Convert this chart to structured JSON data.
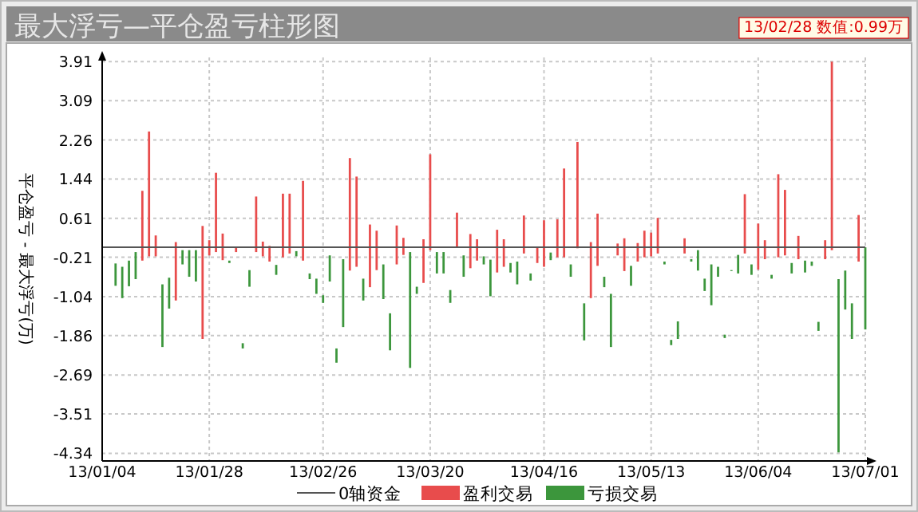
{
  "chart_data": {
    "type": "bar",
    "title": "最大浮亏—平仓盈亏柱形图",
    "ylabel": "平仓盈亏 - 最大浮亏(万)",
    "annotations": [
      "13/02/28 数值:0.99万"
    ],
    "categories": [
      "13/01/04",
      null,
      null,
      null,
      null,
      null,
      null,
      null,
      null,
      null,
      null,
      null,
      null,
      null,
      null,
      null,
      "13/01/28",
      null,
      null,
      null,
      null,
      null,
      null,
      null,
      null,
      null,
      null,
      null,
      null,
      null,
      null,
      null,
      null,
      "13/02/26",
      null,
      null,
      null,
      null,
      null,
      null,
      null,
      null,
      null,
      null,
      null,
      null,
      null,
      null,
      null,
      "13/03/20",
      null,
      null,
      null,
      null,
      null,
      null,
      null,
      null,
      null,
      null,
      null,
      null,
      null,
      null,
      null,
      null,
      "13/04/16",
      null,
      null,
      null,
      null,
      null,
      null,
      null,
      null,
      null,
      null,
      null,
      null,
      null,
      null,
      null,
      "13/05/13",
      null,
      null,
      null,
      null,
      null,
      null,
      null,
      null,
      null,
      null,
      null,
      null,
      null,
      null,
      null,
      "13/06/04",
      null,
      null,
      null,
      null,
      null,
      null,
      null,
      null,
      null,
      null,
      null,
      null,
      null,
      null,
      null,
      "13/07/01"
    ],
    "ylim": [
      -4.5,
      4.0
    ],
    "yticks": [
      -4.34,
      -3.51,
      -2.69,
      -1.86,
      -1.04,
      -0.21,
      0.61,
      1.44,
      2.26,
      3.09,
      3.91
    ],
    "grid": true,
    "legend": "bottom",
    "ref_lines": [
      {
        "axis": "y",
        "value": 0,
        "label": "0轴资金",
        "color": "#555555",
        "line_style": "solid"
      }
    ],
    "series": [
      {
        "name": "盈利交易",
        "color": "#e84c4c",
        "base": [
          null,
          null,
          null,
          null,
          null,
          null,
          -0.28,
          -0.19,
          -0.19,
          null,
          null,
          -1.12,
          null,
          null,
          null,
          -1.93,
          -0.17,
          -0.1,
          -0.27,
          null,
          -0.1,
          null,
          null,
          -0.1,
          -0.19,
          -0.3,
          null,
          -0.21,
          -0.13,
          null,
          -0.28,
          null,
          null,
          null,
          null,
          null,
          null,
          -0.49,
          -0.41,
          null,
          -0.84,
          -0.48,
          null,
          null,
          -0.36,
          -0.16,
          null,
          null,
          -0.75,
          -0.06,
          null,
          null,
          null,
          0,
          null,
          -0.44,
          -0.28,
          null,
          null,
          -0.53,
          -0.41,
          null,
          null,
          -0.13,
          null,
          -0.33,
          -0.41,
          null,
          -0.21,
          -0.21,
          null,
          -0.02,
          null,
          -1.07,
          -0.39,
          null,
          null,
          -0.17,
          -0.5,
          null,
          -0.3,
          -0.21,
          -0.19,
          -0.13,
          null,
          null,
          null,
          -0.13,
          null,
          null,
          null,
          null,
          null,
          null,
          null,
          null,
          -0.13,
          null,
          -0.47,
          -0.25,
          null,
          -0.21,
          -0.17,
          null,
          -0.25,
          null,
          null,
          null,
          -0.25,
          -0.06,
          null,
          null,
          null,
          -0.3,
          null
        ],
        "values": [
          null,
          null,
          null,
          null,
          null,
          null,
          1.47,
          2.63,
          0.44,
          null,
          null,
          1.23,
          null,
          null,
          null,
          2.38,
          0.32,
          1.67,
          0.56,
          null,
          0.1,
          null,
          null,
          1.17,
          0.31,
          0.33,
          null,
          1.34,
          1.26,
          null,
          1.68,
          null,
          null,
          null,
          null,
          null,
          null,
          2.37,
          1.9,
          null,
          1.32,
          0.83,
          null,
          null,
          0.82,
          0.36,
          null,
          null,
          0.92,
          2.02,
          null,
          null,
          null,
          0.73,
          null,
          0.72,
          0.45,
          null,
          null,
          0.9,
          0.58,
          null,
          null,
          0.8,
          null,
          0.34,
          0.98,
          null,
          0.8,
          1.87,
          null,
          2.24,
          null,
          1.18,
          1.1,
          null,
          null,
          0.25,
          0.69,
          null,
          0.39,
          0.56,
          0.5,
          0.75,
          null,
          null,
          null,
          0.32,
          null,
          null,
          null,
          null,
          null,
          null,
          null,
          null,
          1.25,
          null,
          0.97,
          0.4,
          null,
          1.75,
          1.38,
          null,
          0.49,
          null,
          null,
          null,
          0.4,
          3.97,
          null,
          null,
          null,
          0.98,
          null
        ]
      },
      {
        "name": "亏损交易",
        "color": "#3c963c",
        "base": [
          null,
          null,
          -0.81,
          -1.07,
          -0.82,
          -0.67,
          null,
          null,
          null,
          -2.1,
          -1.29,
          null,
          -0.36,
          -0.62,
          -0.72,
          null,
          null,
          null,
          null,
          -0.33,
          null,
          -2.13,
          -0.83,
          null,
          null,
          null,
          -0.58,
          null,
          null,
          -0.19,
          null,
          -0.67,
          -0.98,
          -1.17,
          -0.72,
          -2.43,
          -1.68,
          null,
          null,
          -1.12,
          null,
          null,
          -1.09,
          -2.17,
          null,
          null,
          -2.54,
          -0.98,
          null,
          null,
          -0.55,
          -0.55,
          -1.17,
          null,
          -0.62,
          null,
          null,
          -0.36,
          -1.03,
          null,
          null,
          -0.53,
          -0.78,
          null,
          -0.7,
          null,
          null,
          -0.27,
          null,
          null,
          -0.62,
          null,
          -1.96,
          null,
          null,
          -0.84,
          -2.1,
          null,
          null,
          -0.81,
          null,
          null,
          null,
          null,
          -0.36,
          -2.06,
          -1.93,
          null,
          -0.3,
          -0.49,
          -0.92,
          -1.22,
          -0.62,
          -1.91,
          -0.5,
          -0.55,
          null,
          -0.58,
          null,
          null,
          -0.66,
          null,
          null,
          -0.55,
          null,
          -0.53,
          -0.39,
          -1.76,
          null,
          null,
          -4.32,
          -1.31,
          -1.93,
          null,
          -1.73
        ],
        "values": [
          null,
          null,
          0.47,
          0.66,
          0.54,
          0.57,
          null,
          null,
          null,
          1.32,
          0.65,
          null,
          0.3,
          0.56,
          0.66,
          null,
          null,
          null,
          null,
          0.05,
          null,
          0.11,
          0.35,
          null,
          null,
          null,
          0.21,
          null,
          null,
          0.11,
          null,
          0.12,
          0.32,
          0.16,
          0.55,
          0.3,
          1.43,
          null,
          null,
          0.46,
          null,
          null,
          0.73,
          0.78,
          null,
          null,
          2.44,
          0.15,
          null,
          null,
          0.45,
          0.45,
          0.27,
          null,
          0.45,
          null,
          null,
          0.17,
          0.77,
          null,
          null,
          0.2,
          0.48,
          null,
          0.15,
          null,
          null,
          0.16,
          null,
          null,
          0.26,
          null,
          0.78,
          null,
          null,
          0.22,
          1.12,
          null,
          null,
          0.42,
          null,
          null,
          null,
          null,
          0.06,
          0.11,
          0.37,
          null,
          0.05,
          0.43,
          0.26,
          0.86,
          0.21,
          0.07,
          0.02,
          0.39,
          null,
          0.22,
          null,
          null,
          0.08,
          null,
          null,
          0.22,
          null,
          0.25,
          0.09,
          0.19,
          null,
          null,
          3.65,
          0.82,
          0.75,
          null,
          1.73
        ]
      }
    ]
  }
}
